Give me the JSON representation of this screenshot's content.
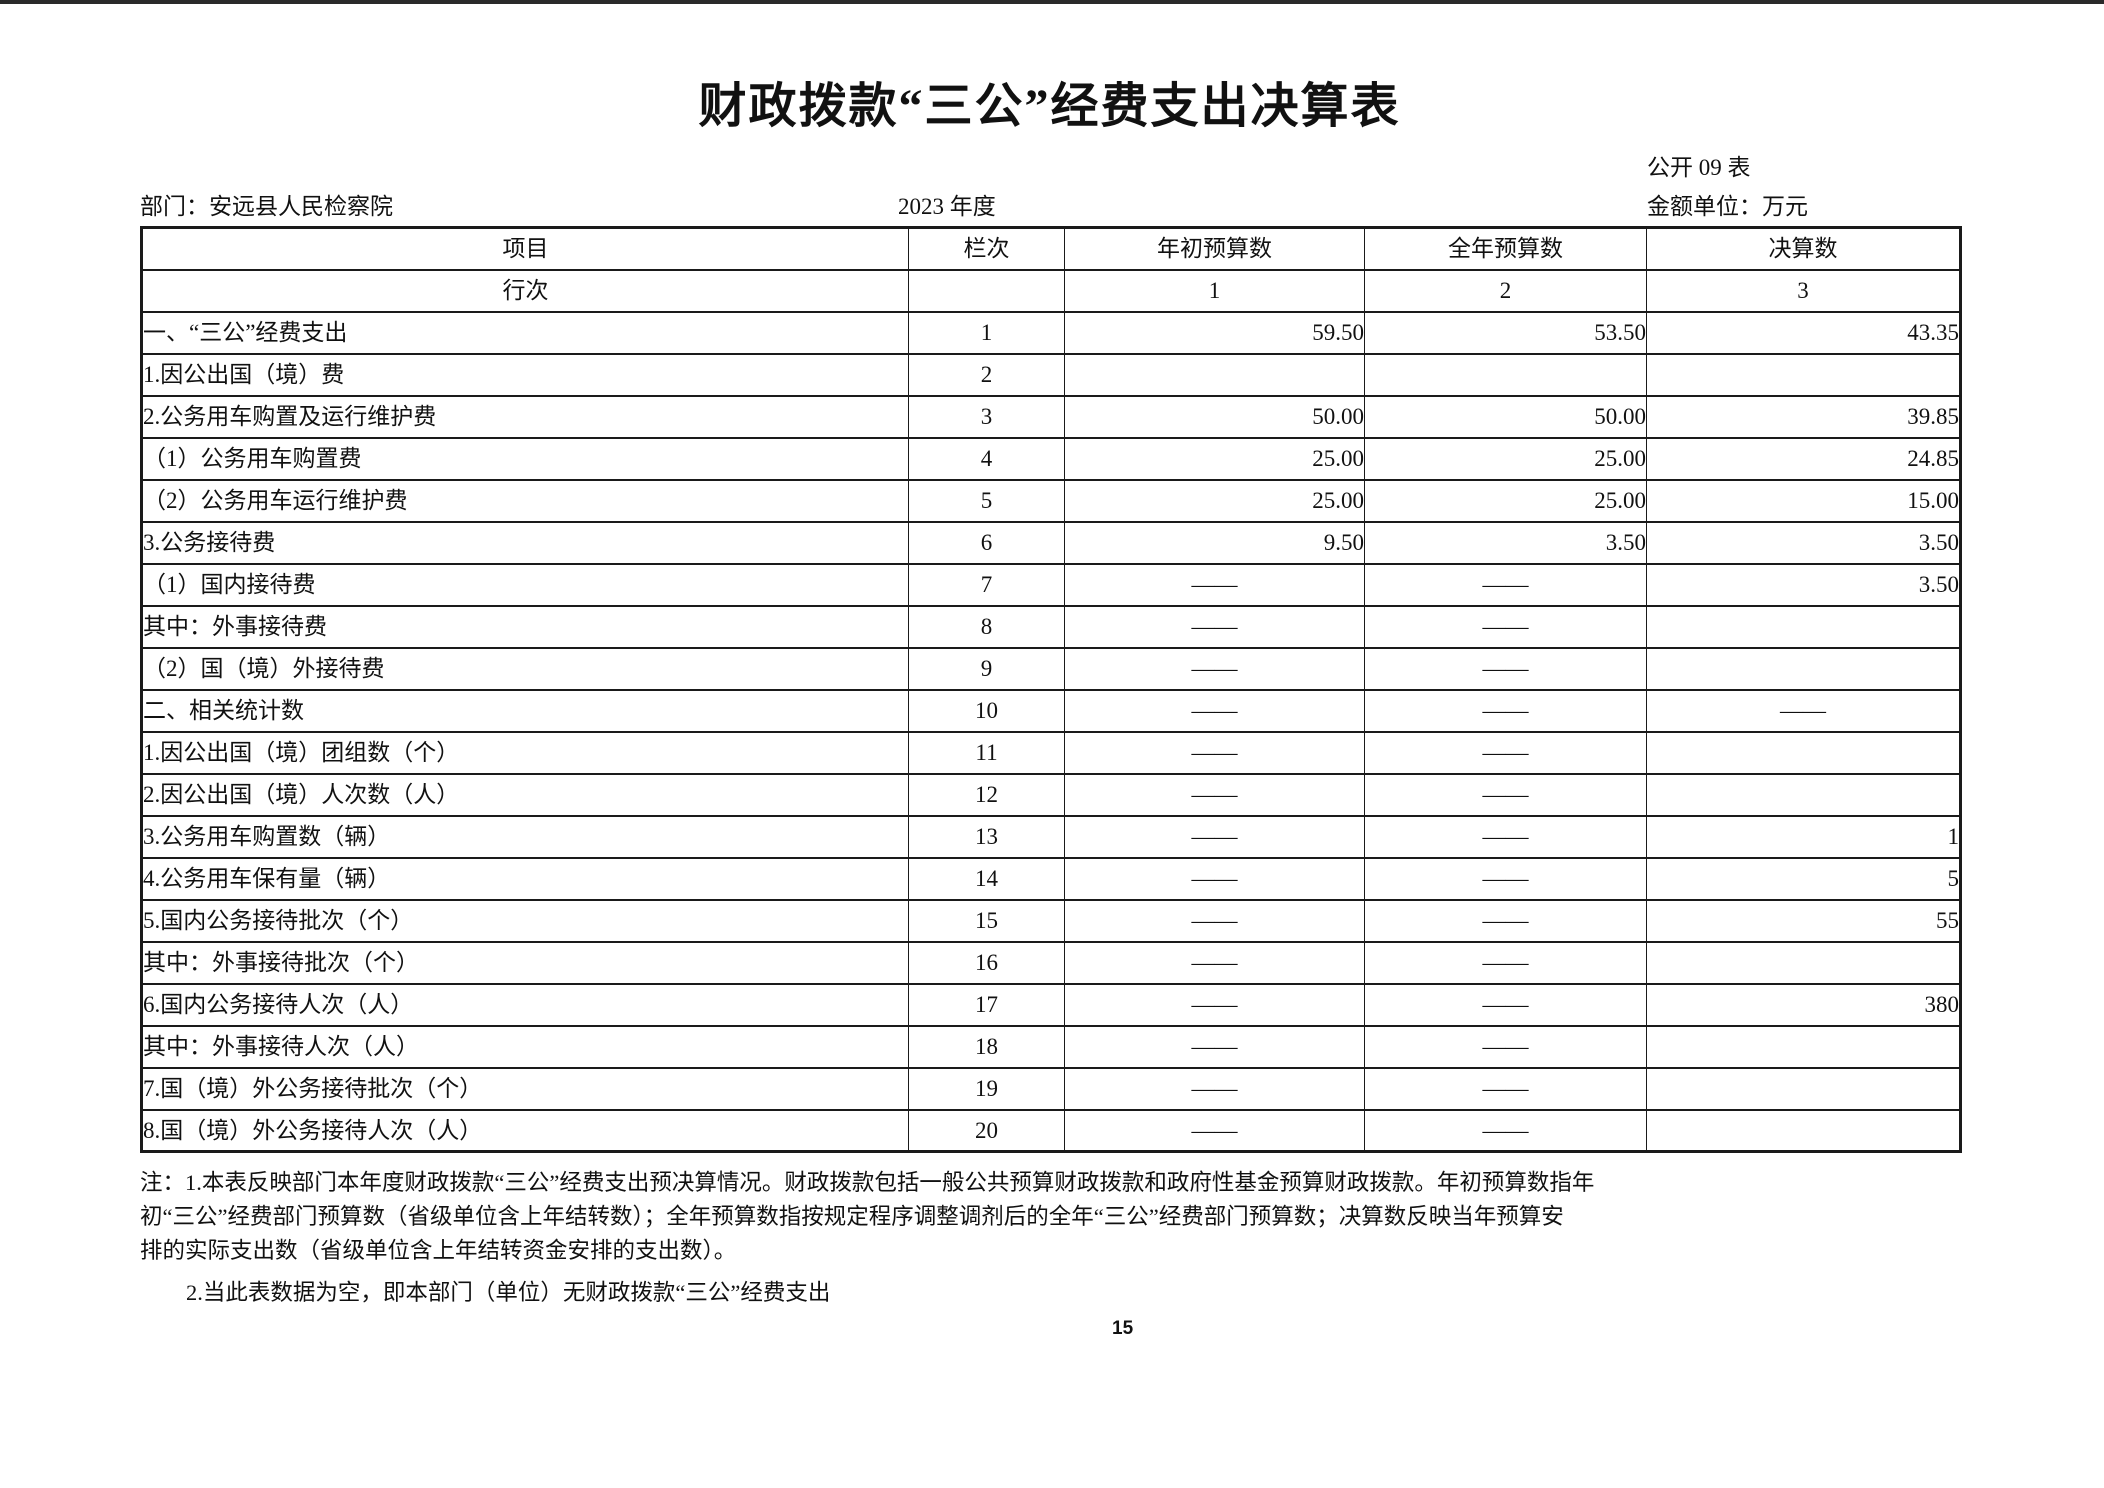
{
  "page": {
    "title": "财政拨款“三公”经费支出决算表",
    "form_no": "公开 09 表",
    "department": "部门：安远县人民检察院",
    "year": "2023 年度",
    "unit": "金额单位：万元",
    "page_number": "15"
  },
  "colors": {
    "highlight_teal": "#d8f2e8",
    "header_gray": "#f0f0f0",
    "border": "#1a1a1a"
  },
  "table": {
    "columns": [
      "项目",
      "栏次",
      "年初预算数",
      "全年预算数",
      "决算数"
    ],
    "subheader": {
      "label": "行次",
      "cols": [
        "1",
        "2",
        "3"
      ]
    },
    "rows": [
      {
        "item": "一、“三公”经费支出",
        "indent": 0,
        "line": "1",
        "values": [
          "59.50",
          "53.50",
          "43.35"
        ],
        "highlight": [
          true,
          true,
          true
        ]
      },
      {
        "item": "1.因公出国（境）费",
        "indent": 1,
        "line": "2",
        "values": [
          "",
          "",
          ""
        ],
        "highlight": [
          true,
          true,
          true
        ]
      },
      {
        "item": "2.公务用车购置及运行维护费",
        "indent": 1,
        "line": "3",
        "values": [
          "50.00",
          "50.00",
          "39.85"
        ],
        "highlight": [
          true,
          true,
          true
        ]
      },
      {
        "item": "（1）公务用车购置费",
        "indent": 2,
        "line": "4",
        "values": [
          "25.00",
          "25.00",
          "24.85"
        ],
        "highlight": [
          true,
          true,
          true
        ]
      },
      {
        "item": "（2）公务用车运行维护费",
        "indent": 2,
        "line": "5",
        "values": [
          "25.00",
          "25.00",
          "15.00"
        ],
        "highlight": [
          true,
          true,
          true
        ]
      },
      {
        "item": "3.公务接待费",
        "indent": 1,
        "line": "6",
        "values": [
          "9.50",
          "3.50",
          "3.50"
        ],
        "highlight": [
          true,
          true,
          true
        ]
      },
      {
        "item": "（1）国内接待费",
        "indent": 2,
        "line": "7",
        "values": [
          "——",
          "——",
          "3.50"
        ],
        "highlight": [
          false,
          false,
          true
        ]
      },
      {
        "item": "其中：外事接待费",
        "indent": 3,
        "line": "8",
        "values": [
          "——",
          "——",
          ""
        ],
        "highlight": [
          false,
          false,
          true
        ]
      },
      {
        "item": "（2）国（境）外接待费",
        "indent": 2,
        "line": "9",
        "values": [
          "——",
          "——",
          ""
        ],
        "highlight": [
          false,
          false,
          true
        ]
      },
      {
        "item": "二、相关统计数",
        "indent": 0,
        "line": "10",
        "values": [
          "——",
          "——",
          "——"
        ],
        "highlight": [
          false,
          false,
          false
        ]
      },
      {
        "item": "1.因公出国（境）团组数（个）",
        "indent": 1,
        "line": "11",
        "values": [
          "——",
          "——",
          ""
        ],
        "highlight": [
          false,
          false,
          true
        ]
      },
      {
        "item": "2.因公出国（境）人次数（人）",
        "indent": 1,
        "line": "12",
        "values": [
          "——",
          "——",
          ""
        ],
        "highlight": [
          false,
          false,
          true
        ]
      },
      {
        "item": "3.公务用车购置数（辆）",
        "indent": 1,
        "line": "13",
        "values": [
          "——",
          "——",
          "1"
        ],
        "highlight": [
          false,
          false,
          true
        ]
      },
      {
        "item": "4.公务用车保有量（辆）",
        "indent": 1,
        "line": "14",
        "values": [
          "——",
          "——",
          "5"
        ],
        "highlight": [
          false,
          false,
          true
        ]
      },
      {
        "item": "5.国内公务接待批次（个）",
        "indent": 1,
        "line": "15",
        "values": [
          "——",
          "——",
          "55"
        ],
        "highlight": [
          false,
          false,
          true
        ]
      },
      {
        "item": "其中：外事接待批次（个）",
        "indent": 2,
        "line": "16",
        "values": [
          "——",
          "——",
          ""
        ],
        "highlight": [
          false,
          false,
          true
        ]
      },
      {
        "item": "6.国内公务接待人次（人）",
        "indent": 1,
        "line": "17",
        "values": [
          "——",
          "——",
          "380"
        ],
        "highlight": [
          false,
          false,
          true
        ]
      },
      {
        "item": "其中：外事接待人次（人）",
        "indent": 2,
        "line": "18",
        "values": [
          "——",
          "——",
          ""
        ],
        "highlight": [
          false,
          false,
          true
        ]
      },
      {
        "item": "7.国（境）外公务接待批次（个）",
        "indent": 1,
        "line": "19",
        "values": [
          "——",
          "——",
          ""
        ],
        "highlight": [
          false,
          false,
          true
        ]
      },
      {
        "item": "8.国（境）外公务接待人次（人）",
        "indent": 1,
        "line": "20",
        "values": [
          "——",
          "——",
          ""
        ],
        "highlight": [
          false,
          false,
          true
        ]
      }
    ]
  },
  "notes": {
    "lines": [
      "注：1.本表反映部门本年度财政拨款“三公”经费支出预决算情况。财政拨款包括一般公共预算财政拨款和政府性基金预算财政拨款。年初预算数指年",
      "初“三公”经费部门预算数（省级单位含上年结转数）；全年预算数指按规定程序调整调剂后的全年“三公”经费部门预算数；决算数反映当年预算安",
      "排的实际支出数（省级单位含上年结转资金安排的支出数）。",
      "2.当此表数据为空，即本部门（单位）无财政拨款“三公”经费支出"
    ]
  }
}
